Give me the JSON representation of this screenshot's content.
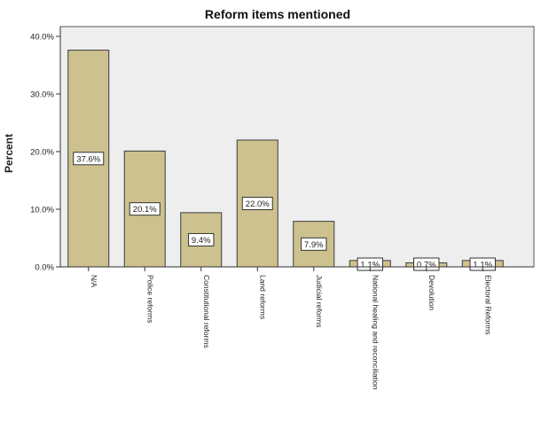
{
  "chart_data": {
    "type": "bar",
    "title": "Reform items mentioned",
    "xlabel": "",
    "ylabel": "Percent",
    "ylim": [
      0,
      40
    ],
    "yticks": [
      0,
      10,
      20,
      30,
      40
    ],
    "ytick_labels": [
      "0.0%",
      "10.0%",
      "20.0%",
      "30.0%",
      "40.0%"
    ],
    "grid": false,
    "categories": [
      "N/A",
      "Police reforms",
      "Constitutional reforms",
      "Land reforms",
      "Judicial reforms",
      "National healing and reconciliation",
      "Devolution",
      "Electoral Reforms"
    ],
    "values": [
      37.6,
      20.1,
      9.4,
      22.0,
      7.9,
      1.1,
      0.7,
      1.1
    ],
    "data_labels": [
      "37.6%",
      "20.1%",
      "9.4%",
      "22.0%",
      "7.9%",
      "1.1%",
      "0.7%",
      "1.1%"
    ],
    "colors": {
      "bar_fill": "#cdc28f",
      "bar_stroke": "#3a3a3a",
      "plot_background": "#eeeeee",
      "axis": "#333333",
      "text": "#222222"
    }
  }
}
